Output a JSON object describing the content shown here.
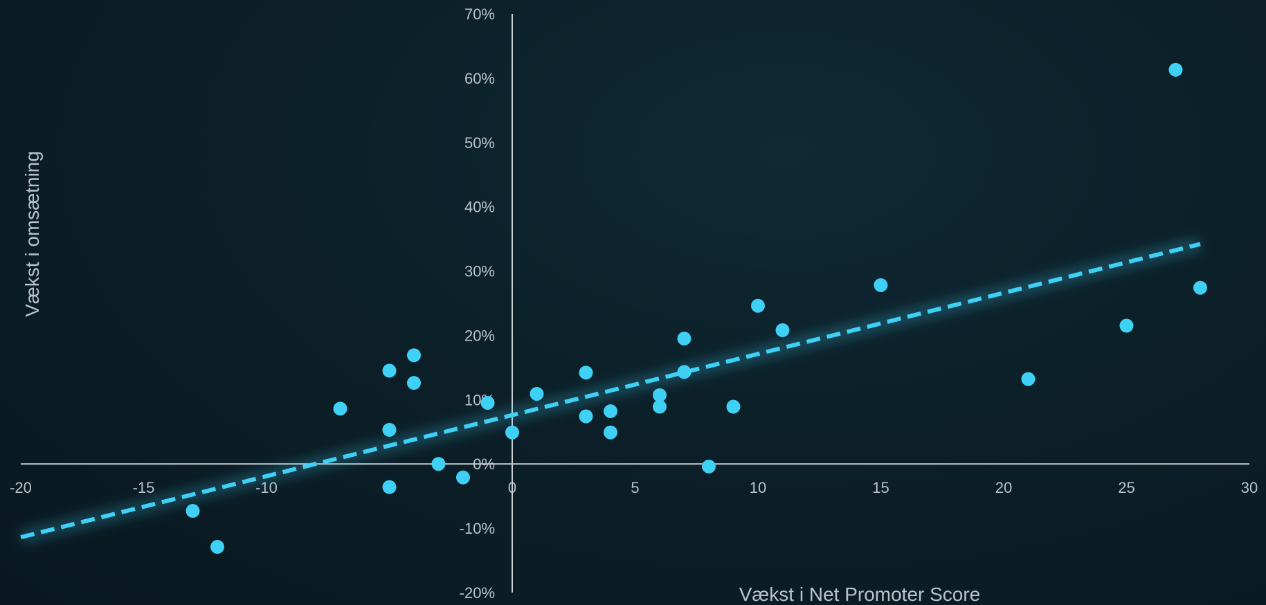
{
  "chart_data": {
    "type": "scatter",
    "title": "",
    "xlabel": "Vækst i Net Promoter Score",
    "ylabel": "Vækst i omsætning",
    "xlim": [
      -20,
      30
    ],
    "ylim": [
      -0.2,
      0.7
    ],
    "x_ticks": [
      -20,
      -15,
      -10,
      -5,
      0,
      5,
      10,
      15,
      20,
      25,
      30
    ],
    "x_tick_labels": [
      "-20",
      "-15",
      "-10",
      "-5",
      "0",
      "5",
      "10",
      "15",
      "20",
      "25",
      "30"
    ],
    "y_ticks": [
      -0.2,
      -0.1,
      0,
      0.1,
      0.2,
      0.3,
      0.4,
      0.5,
      0.6,
      0.7
    ],
    "y_tick_labels": [
      "-20%",
      "-10%",
      "0%",
      "10%",
      "20%",
      "30%",
      "40%",
      "50%",
      "60%",
      "70%"
    ],
    "grid": false,
    "point_color": "#3fd0f5",
    "trendline_color": "#3fd0f5",
    "points": [
      {
        "x": -13,
        "y": -0.073
      },
      {
        "x": -12,
        "y": -0.129
      },
      {
        "x": -7,
        "y": 0.086
      },
      {
        "x": -5,
        "y": 0.145
      },
      {
        "x": -5,
        "y": 0.053
      },
      {
        "x": -5,
        "y": -0.036
      },
      {
        "x": -4,
        "y": 0.169
      },
      {
        "x": -4,
        "y": 0.126
      },
      {
        "x": -3,
        "y": 0.0
      },
      {
        "x": -2,
        "y": -0.021
      },
      {
        "x": -1,
        "y": 0.095
      },
      {
        "x": 0,
        "y": 0.049
      },
      {
        "x": 1,
        "y": 0.109
      },
      {
        "x": 3,
        "y": 0.142
      },
      {
        "x": 3,
        "y": 0.074
      },
      {
        "x": 4,
        "y": 0.082
      },
      {
        "x": 4,
        "y": 0.049
      },
      {
        "x": 6,
        "y": 0.107
      },
      {
        "x": 6,
        "y": 0.089
      },
      {
        "x": 7,
        "y": 0.195
      },
      {
        "x": 7,
        "y": 0.143
      },
      {
        "x": 8,
        "y": -0.004
      },
      {
        "x": 9,
        "y": 0.089
      },
      {
        "x": 10,
        "y": 0.246
      },
      {
        "x": 11,
        "y": 0.208
      },
      {
        "x": 15,
        "y": 0.278
      },
      {
        "x": 21,
        "y": 0.132
      },
      {
        "x": 25,
        "y": 0.215
      },
      {
        "x": 27,
        "y": 0.613
      },
      {
        "x": 28,
        "y": 0.274
      }
    ],
    "trendline": {
      "type": "linear",
      "style": "dashed",
      "x": [
        -20,
        28
      ],
      "y": [
        -0.114,
        0.342
      ]
    }
  }
}
